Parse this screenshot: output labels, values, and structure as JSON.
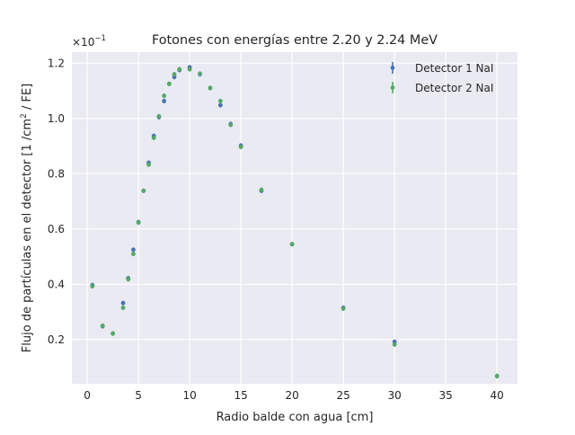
{
  "chart_data": {
    "type": "scatter",
    "title": "Fotones con energías entre 2.20 y 2.24 MeV",
    "xlabel": "Radio balde con agua [cm]",
    "ylabel_main": "Flujo de partículas en el detector [1 /cm",
    "ylabel_sup": "2",
    "ylabel_tail": " / FE]",
    "y_offset_base": "×10",
    "y_offset_exp": "−1",
    "xlim": [
      -1.5,
      42
    ],
    "ylim": [
      0.04,
      1.24
    ],
    "x_ticks": [
      0,
      5,
      10,
      15,
      20,
      25,
      30,
      35,
      40
    ],
    "x_tick_labels": [
      "0",
      "5",
      "10",
      "15",
      "20",
      "25",
      "30",
      "35",
      "40"
    ],
    "y_ticks": [
      0.2,
      0.4,
      0.6,
      0.8,
      1.0,
      1.2
    ],
    "y_tick_labels": [
      "0.2",
      "0.4",
      "0.6",
      "0.8",
      "1.0",
      "1.2"
    ],
    "grid": true,
    "legend_position": "top-right",
    "series": [
      {
        "name": "Detector 1 NaI",
        "color": "#4c72b0",
        "x": [
          0.5,
          1.5,
          2.5,
          3.5,
          4.0,
          4.5,
          5.0,
          5.5,
          6.0,
          6.5,
          7.0,
          7.5,
          8.0,
          8.5,
          9.0,
          10.0,
          11.0,
          12.0,
          13.0,
          14.0,
          15.0,
          17.0,
          20.0,
          25.0,
          30.0,
          40.0
        ],
        "y": [
          0.397,
          0.248,
          0.222,
          0.332,
          0.422,
          0.525,
          0.625,
          0.738,
          0.84,
          0.937,
          1.005,
          1.063,
          1.125,
          1.15,
          1.175,
          1.185,
          1.16,
          1.11,
          1.048,
          0.98,
          0.902,
          0.738,
          0.545,
          0.315,
          0.192,
          0.068
        ]
      },
      {
        "name": "Detector 2 NaI",
        "color": "#55a868",
        "x": [
          0.5,
          1.5,
          2.5,
          3.5,
          4.0,
          4.5,
          5.0,
          5.5,
          6.0,
          6.5,
          7.0,
          7.5,
          8.0,
          8.5,
          9.0,
          10.0,
          11.0,
          12.0,
          13.0,
          14.0,
          15.0,
          17.0,
          20.0,
          25.0,
          30.0,
          40.0
        ],
        "y": [
          0.393,
          0.25,
          0.222,
          0.315,
          0.418,
          0.51,
          0.623,
          0.738,
          0.833,
          0.93,
          1.008,
          1.082,
          1.125,
          1.16,
          1.178,
          1.178,
          1.162,
          1.11,
          1.063,
          0.977,
          0.897,
          0.742,
          0.545,
          0.312,
          0.182,
          0.068
        ]
      }
    ]
  }
}
